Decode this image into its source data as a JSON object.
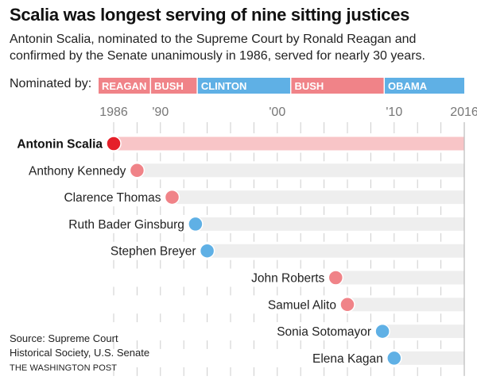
{
  "header": {
    "title": "Scalia was longest serving of nine sitting justices",
    "subtitle": "Antonin Scalia, nominated to the Supreme Court by Ronald Reagan and confirmed by the Senate unanimously in 1986, served for nearly 30 years."
  },
  "legend": {
    "nominated_label": "Nominated by:"
  },
  "footer": {
    "source": "Source: Supreme Court Historical Society, U.S. Senate",
    "brand": "THE WASHINGTON POST"
  },
  "colors": {
    "republican": "#f08388",
    "democrat": "#5fb0e5",
    "scalia_dot": "#e5202a",
    "scalia_bar": "#f8c5c7",
    "bar_bg": "#eeeeee",
    "tick": "#cccccc",
    "end_line": "#bbbbbb"
  },
  "chart_data": {
    "type": "timeline",
    "title": "Scalia was longest serving of nine sitting justices",
    "x_range": [
      1986,
      2016
    ],
    "tick_labels": [
      {
        "year": 1986,
        "label": "1986"
      },
      {
        "year": 1990,
        "label": "'90"
      },
      {
        "year": 2000,
        "label": "'00"
      },
      {
        "year": 2010,
        "label": "'10"
      },
      {
        "year": 2016,
        "label": "2016"
      }
    ],
    "minor_tick_step": 2,
    "presidents": [
      {
        "name": "REAGAN",
        "party": "republican",
        "start": 1984.7,
        "end": 1989.1
      },
      {
        "name": "BUSH",
        "party": "republican",
        "start": 1989.2,
        "end": 1993.1
      },
      {
        "name": "CLINTON",
        "party": "democrat",
        "start": 1993.2,
        "end": 2001.1
      },
      {
        "name": "BUSH",
        "party": "republican",
        "start": 2001.2,
        "end": 2009.1
      },
      {
        "name": "OBAMA",
        "party": "democrat",
        "start": 2009.2,
        "end": 2016
      }
    ],
    "justices": [
      {
        "name": "Antonin Scalia",
        "start": 1986,
        "party": "republican",
        "highlight": true
      },
      {
        "name": "Anthony Kennedy",
        "start": 1988,
        "party": "republican",
        "highlight": false
      },
      {
        "name": "Clarence Thomas",
        "start": 1991,
        "party": "republican",
        "highlight": false
      },
      {
        "name": "Ruth Bader Ginsburg",
        "start": 1993,
        "party": "democrat",
        "highlight": false
      },
      {
        "name": "Stephen Breyer",
        "start": 1994,
        "party": "democrat",
        "highlight": false
      },
      {
        "name": "John Roberts",
        "start": 2005,
        "party": "republican",
        "highlight": false
      },
      {
        "name": "Samuel Alito",
        "start": 2006,
        "party": "republican",
        "highlight": false
      },
      {
        "name": "Sonia Sotomayor",
        "start": 2009,
        "party": "democrat",
        "highlight": false
      },
      {
        "name": "Elena Kagan",
        "start": 2010,
        "party": "democrat",
        "highlight": false
      }
    ]
  }
}
